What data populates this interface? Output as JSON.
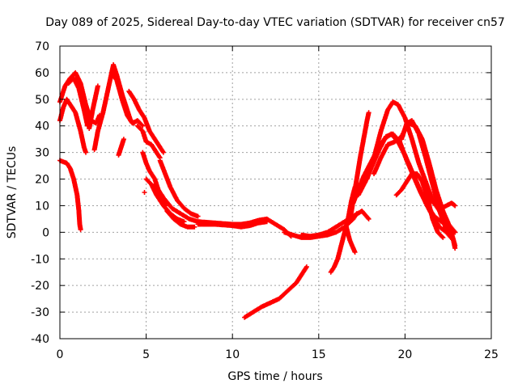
{
  "chart_data": {
    "type": "scatter",
    "title": "Day 089 of 2025, Sidereal Day-to-day VTEC variation (SDTVAR) for receiver cn57",
    "xlabel": "GPS time / hours",
    "ylabel": "SDTVAR / TECUs",
    "xlim": [
      0,
      25
    ],
    "ylim": [
      -40,
      70
    ],
    "xticks": [
      0,
      5,
      10,
      15,
      20,
      25
    ],
    "yticks": [
      -40,
      -30,
      -20,
      -10,
      0,
      10,
      20,
      30,
      40,
      50,
      60,
      70
    ],
    "grid": true,
    "marker": "+",
    "color": "#ff0000",
    "series": [
      {
        "name": "arc-1",
        "points": [
          [
            0,
            27
          ],
          [
            0.4,
            26
          ],
          [
            0.6,
            24
          ],
          [
            0.8,
            20
          ],
          [
            1.0,
            14
          ],
          [
            1.1,
            8
          ],
          [
            1.15,
            3
          ],
          [
            1.2,
            1
          ]
        ]
      },
      {
        "name": "arc-2",
        "points": [
          [
            0,
            42
          ],
          [
            0.2,
            47
          ],
          [
            0.4,
            50
          ],
          [
            0.6,
            48
          ],
          [
            0.9,
            45
          ],
          [
            1.2,
            38
          ],
          [
            1.4,
            32
          ],
          [
            1.5,
            30
          ]
        ]
      },
      {
        "name": "arc-3",
        "points": [
          [
            0,
            49
          ],
          [
            0.3,
            55
          ],
          [
            0.6,
            58
          ],
          [
            0.9,
            60
          ],
          [
            1.2,
            56
          ],
          [
            1.5,
            48
          ],
          [
            1.8,
            42
          ],
          [
            2.1,
            41
          ],
          [
            2.3,
            44
          ]
        ]
      },
      {
        "name": "arc-4",
        "points": [
          [
            0.5,
            56
          ],
          [
            0.8,
            58
          ],
          [
            1.1,
            54
          ],
          [
            1.4,
            46
          ],
          [
            1.6,
            40
          ]
        ]
      },
      {
        "name": "arc-5",
        "points": [
          [
            1.7,
            39
          ],
          [
            1.9,
            46
          ],
          [
            2.1,
            52
          ],
          [
            2.2,
            55
          ]
        ]
      },
      {
        "name": "arc-6",
        "points": [
          [
            2.0,
            31
          ],
          [
            2.2,
            38
          ],
          [
            2.5,
            45
          ],
          [
            2.8,
            54
          ],
          [
            3.1,
            63
          ],
          [
            3.3,
            59
          ],
          [
            3.6,
            52
          ],
          [
            3.9,
            46
          ],
          [
            4.1,
            42
          ],
          [
            4.3,
            41
          ]
        ]
      },
      {
        "name": "arc-7",
        "points": [
          [
            3.0,
            60
          ],
          [
            3.3,
            57
          ],
          [
            3.6,
            50
          ],
          [
            3.9,
            44
          ],
          [
            4.2,
            41
          ],
          [
            4.5,
            42
          ],
          [
            4.8,
            40
          ]
        ]
      },
      {
        "name": "arc-8",
        "points": [
          [
            3.4,
            29
          ],
          [
            3.5,
            31
          ],
          [
            3.6,
            33
          ],
          [
            3.7,
            35
          ]
        ]
      },
      {
        "name": "arc-9",
        "points": [
          [
            4.0,
            53
          ],
          [
            4.3,
            50
          ],
          [
            4.6,
            46
          ],
          [
            4.9,
            43
          ],
          [
            5.2,
            38
          ],
          [
            5.5,
            35
          ],
          [
            5.8,
            32
          ],
          [
            6.0,
            30
          ]
        ]
      },
      {
        "name": "arc-10",
        "points": [
          [
            4.5,
            40
          ],
          [
            4.8,
            38
          ],
          [
            5.0,
            34
          ],
          [
            5.3,
            33
          ],
          [
            5.6,
            30
          ],
          [
            5.8,
            28
          ]
        ]
      },
      {
        "name": "arc-11",
        "points": [
          [
            4.8,
            30
          ],
          [
            5.0,
            26
          ],
          [
            5.2,
            23
          ],
          [
            5.5,
            20
          ],
          [
            5.7,
            16
          ],
          [
            5.9,
            12
          ],
          [
            6.1,
            10
          ]
        ]
      },
      {
        "name": "arc-12",
        "points": [
          [
            5.0,
            20
          ],
          [
            5.3,
            18
          ],
          [
            5.6,
            14
          ],
          [
            6.0,
            10
          ],
          [
            6.4,
            7
          ],
          [
            6.8,
            5
          ],
          [
            7.2,
            4
          ]
        ]
      },
      {
        "name": "arc-13",
        "points": [
          [
            5.5,
            18
          ],
          [
            6.0,
            13
          ],
          [
            6.5,
            9
          ],
          [
            7.0,
            7
          ],
          [
            7.5,
            5
          ],
          [
            8.0,
            4
          ]
        ]
      },
      {
        "name": "arc-14",
        "points": [
          [
            5.8,
            27
          ],
          [
            6.1,
            22
          ],
          [
            6.4,
            17
          ],
          [
            6.8,
            12
          ],
          [
            7.2,
            9
          ],
          [
            7.6,
            7
          ],
          [
            8.0,
            6
          ]
        ]
      },
      {
        "name": "arc-15",
        "points": [
          [
            6.2,
            8
          ],
          [
            6.6,
            5
          ],
          [
            7.0,
            3
          ],
          [
            7.4,
            2
          ],
          [
            7.8,
            2
          ]
        ]
      },
      {
        "name": "arc-16",
        "points": [
          [
            4.9,
            15
          ]
        ]
      },
      {
        "name": "arc-17",
        "points": [
          [
            8.0,
            4
          ],
          [
            9.0,
            3.5
          ],
          [
            10.0,
            3
          ],
          [
            10.5,
            3
          ],
          [
            11.0,
            3.5
          ],
          [
            11.5,
            4.5
          ],
          [
            12.0,
            5
          ],
          [
            12.5,
            3
          ],
          [
            13.0,
            1
          ],
          [
            13.4,
            -1.5
          ]
        ]
      },
      {
        "name": "arc-18",
        "points": [
          [
            8.0,
            3
          ],
          [
            9.0,
            3
          ],
          [
            10.0,
            2.5
          ],
          [
            10.5,
            2
          ],
          [
            11.0,
            2.5
          ],
          [
            11.5,
            3.5
          ],
          [
            12.0,
            4
          ]
        ]
      },
      {
        "name": "arc-19",
        "points": [
          [
            13.0,
            0
          ],
          [
            13.5,
            -1
          ],
          [
            14.0,
            -2
          ],
          [
            14.5,
            -2
          ],
          [
            15.0,
            -1.5
          ],
          [
            15.5,
            -1
          ],
          [
            16.0,
            0
          ],
          [
            16.5,
            2
          ],
          [
            17.0,
            5
          ],
          [
            17.2,
            7
          ]
        ]
      },
      {
        "name": "arc-20",
        "points": [
          [
            14.0,
            -1
          ],
          [
            14.5,
            -1.5
          ],
          [
            15.0,
            -1
          ],
          [
            15.5,
            0
          ],
          [
            16.0,
            2
          ],
          [
            16.5,
            4
          ],
          [
            17.0,
            6
          ],
          [
            17.5,
            8
          ],
          [
            17.9,
            5
          ]
        ]
      },
      {
        "name": "arc-21",
        "points": [
          [
            10.7,
            -32
          ],
          [
            11.2,
            -30
          ],
          [
            11.7,
            -28
          ],
          [
            12.2,
            -26.5
          ],
          [
            12.7,
            -25
          ],
          [
            13.2,
            -22
          ],
          [
            13.7,
            -19
          ],
          [
            14.0,
            -16
          ],
          [
            14.3,
            -13
          ]
        ]
      },
      {
        "name": "arc-22",
        "points": [
          [
            15.7,
            -15
          ],
          [
            15.9,
            -13
          ],
          [
            16.1,
            -10
          ],
          [
            16.3,
            -5
          ],
          [
            16.5,
            0
          ],
          [
            16.7,
            5
          ],
          [
            16.9,
            12
          ],
          [
            17.1,
            17
          ]
        ]
      },
      {
        "name": "arc-23",
        "points": [
          [
            16.6,
            2
          ],
          [
            16.8,
            -3
          ],
          [
            17.0,
            -6
          ],
          [
            17.1,
            -7.5
          ]
        ]
      },
      {
        "name": "arc-24",
        "points": [
          [
            16.8,
            4
          ],
          [
            17.0,
            12
          ],
          [
            17.2,
            20
          ],
          [
            17.4,
            28
          ],
          [
            17.6,
            35
          ],
          [
            17.8,
            42
          ],
          [
            17.9,
            45
          ]
        ]
      },
      {
        "name": "arc-25",
        "points": [
          [
            17.0,
            11
          ],
          [
            17.3,
            16
          ],
          [
            17.6,
            21
          ],
          [
            18.0,
            26
          ],
          [
            18.4,
            31
          ],
          [
            18.8,
            35
          ],
          [
            19.2,
            37
          ],
          [
            19.6,
            34
          ],
          [
            20.0,
            29
          ],
          [
            20.4,
            23
          ],
          [
            20.8,
            17
          ],
          [
            21.2,
            11
          ],
          [
            21.6,
            6
          ],
          [
            22.0,
            2
          ],
          [
            22.4,
            0
          ],
          [
            22.8,
            -3
          ]
        ]
      },
      {
        "name": "arc-26",
        "points": [
          [
            17.3,
            14
          ],
          [
            17.7,
            19
          ],
          [
            18.1,
            25
          ],
          [
            18.5,
            31
          ],
          [
            18.9,
            36
          ],
          [
            19.3,
            37
          ],
          [
            19.7,
            34
          ],
          [
            20.1,
            27
          ],
          [
            20.5,
            21
          ],
          [
            20.9,
            15
          ],
          [
            21.3,
            10
          ],
          [
            21.7,
            6
          ],
          [
            22.1,
            4
          ],
          [
            22.5,
            3
          ],
          [
            22.9,
            0
          ]
        ]
      },
      {
        "name": "arc-27",
        "points": [
          [
            17.8,
            20
          ],
          [
            18.2,
            28
          ],
          [
            18.6,
            38
          ],
          [
            19.0,
            46
          ],
          [
            19.3,
            49
          ],
          [
            19.6,
            48
          ],
          [
            20.0,
            43
          ],
          [
            20.4,
            35
          ],
          [
            20.8,
            26
          ],
          [
            21.2,
            19
          ],
          [
            21.6,
            12
          ],
          [
            22.0,
            8
          ],
          [
            22.4,
            4
          ],
          [
            22.9,
            0
          ]
        ]
      },
      {
        "name": "arc-28",
        "points": [
          [
            18.2,
            22
          ],
          [
            18.6,
            28
          ],
          [
            19.0,
            33
          ],
          [
            19.4,
            34
          ],
          [
            19.8,
            36
          ],
          [
            20.2,
            41
          ],
          [
            20.6,
            40
          ],
          [
            21.0,
            35
          ],
          [
            21.4,
            26
          ],
          [
            21.8,
            16
          ],
          [
            22.2,
            8
          ],
          [
            22.6,
            2
          ],
          [
            22.9,
            -5
          ]
        ]
      },
      {
        "name": "arc-29",
        "points": [
          [
            19.8,
            35
          ],
          [
            20.1,
            41
          ],
          [
            20.4,
            42
          ],
          [
            20.8,
            37
          ],
          [
            21.2,
            28
          ],
          [
            21.6,
            18
          ],
          [
            22.0,
            8
          ],
          [
            22.4,
            1
          ],
          [
            22.8,
            -3
          ],
          [
            22.9,
            -6
          ]
        ]
      },
      {
        "name": "arc-30",
        "points": [
          [
            19.5,
            14
          ],
          [
            19.8,
            16
          ],
          [
            20.1,
            19
          ],
          [
            20.4,
            22
          ],
          [
            20.7,
            22
          ],
          [
            21.0,
            19
          ],
          [
            21.3,
            13
          ],
          [
            21.6,
            5
          ],
          [
            21.9,
            0
          ],
          [
            22.2,
            -2
          ]
        ]
      },
      {
        "name": "arc-31",
        "points": [
          [
            21.5,
            12
          ],
          [
            21.8,
            10
          ],
          [
            22.1,
            9
          ],
          [
            22.4,
            10
          ],
          [
            22.7,
            11
          ],
          [
            22.9,
            10
          ]
        ]
      }
    ]
  }
}
